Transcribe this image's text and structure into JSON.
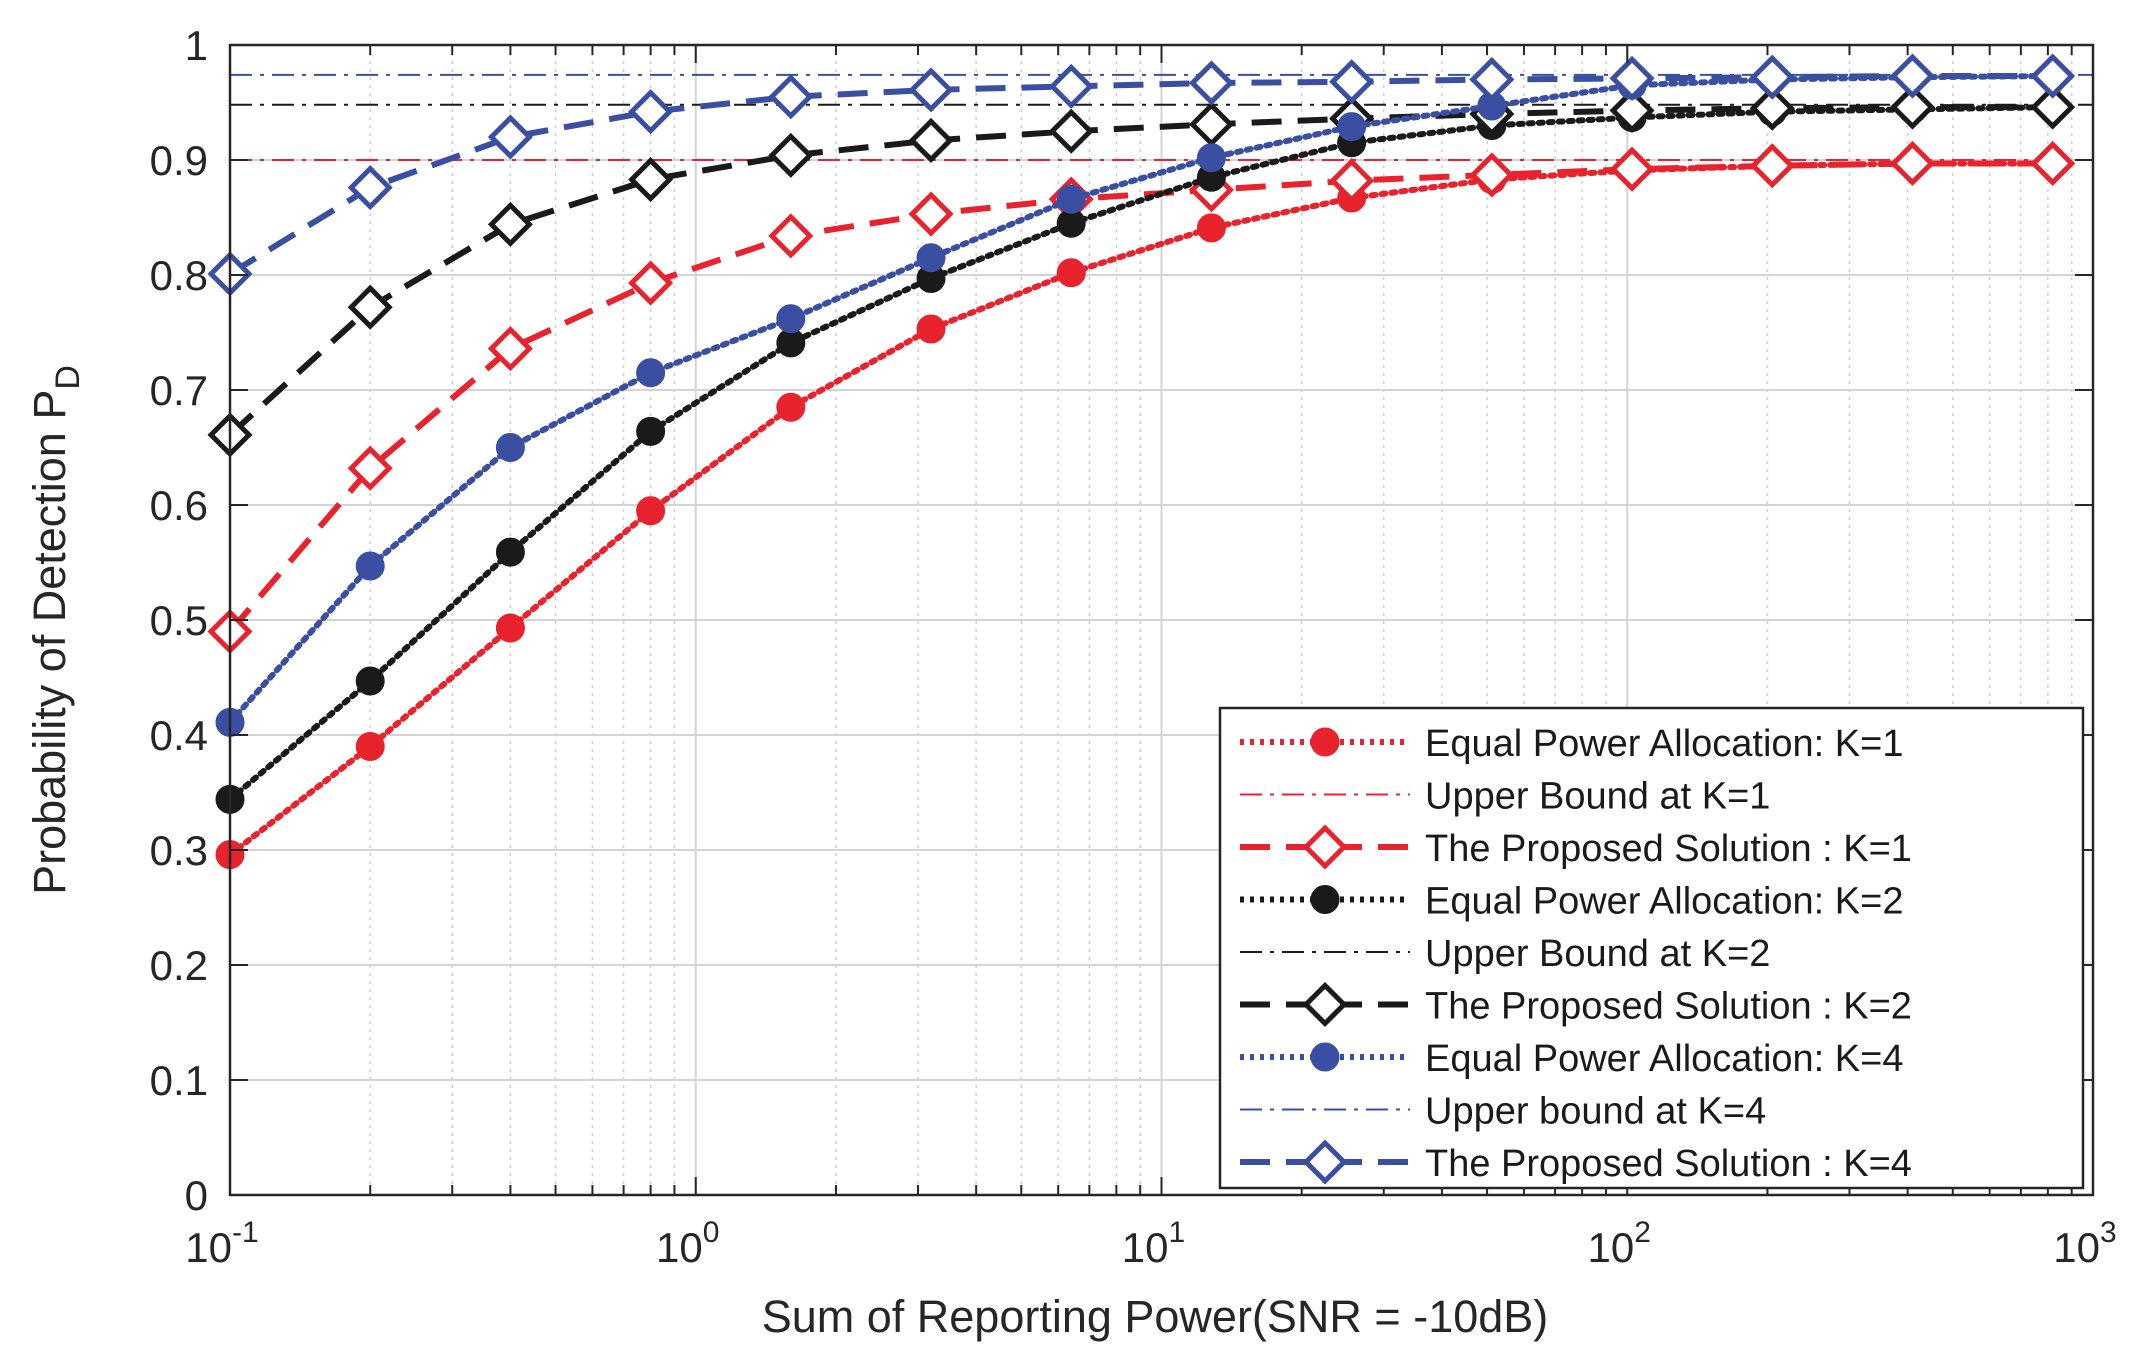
{
  "chart_data": {
    "type": "line",
    "xscale": "log",
    "xlim": [
      0.1,
      1000
    ],
    "ylim": [
      0,
      1
    ],
    "xlabel": "Sum of Reporting Power(SNR = -10dB)",
    "ylabel": "Probability of Detection P",
    "ylabel_sub": "D",
    "x_ticks": [
      {
        "base": "10",
        "exp": "-1",
        "value": 0.1
      },
      {
        "base": "10",
        "exp": "0",
        "value": 1
      },
      {
        "base": "10",
        "exp": "1",
        "value": 10
      },
      {
        "base": "10",
        "exp": "2",
        "value": 100
      },
      {
        "base": "10",
        "exp": "3",
        "value": 1000
      }
    ],
    "y_ticks": [
      "0",
      "0.1",
      "0.2",
      "0.3",
      "0.4",
      "0.5",
      "0.6",
      "0.7",
      "0.8",
      "0.9",
      "1"
    ],
    "x": [
      0.1,
      0.2,
      0.4,
      0.8,
      1.6,
      3.2,
      6.4,
      12.8,
      25.6,
      51.2,
      102.4,
      204.8,
      409.6,
      819.2
    ],
    "series": [
      {
        "name": "Equal Power Allocation: K=1",
        "color": "#e8232d",
        "style": "dotted",
        "marker": "circle",
        "values": [
          0.296,
          0.39,
          0.493,
          0.595,
          0.685,
          0.753,
          0.802,
          0.841,
          0.867,
          0.883,
          0.891,
          0.895,
          0.897,
          0.897
        ]
      },
      {
        "name": "Upper Bound at K=1",
        "color": "#e8232d",
        "style": "dashdot",
        "marker": "none",
        "hline": 0.9
      },
      {
        "name": "The Proposed Solution : K=1",
        "color": "#e8232d",
        "style": "dashed",
        "marker": "diamond",
        "values": [
          0.49,
          0.632,
          0.736,
          0.793,
          0.834,
          0.853,
          0.866,
          0.874,
          0.882,
          0.887,
          0.892,
          0.895,
          0.897,
          0.897
        ]
      },
      {
        "name": "Equal Power Allocation: K=2",
        "color": "#1a1a1a",
        "style": "dotted",
        "marker": "circle",
        "values": [
          0.344,
          0.447,
          0.559,
          0.664,
          0.741,
          0.797,
          0.845,
          0.885,
          0.915,
          0.93,
          0.937,
          0.942,
          0.944,
          0.946
        ]
      },
      {
        "name": "Upper Bound at K=2",
        "color": "#1a1a1a",
        "style": "dashdot",
        "marker": "none",
        "hline": 0.948
      },
      {
        "name": "The Proposed Solution : K=2",
        "color": "#1a1a1a",
        "style": "dashed",
        "marker": "diamond",
        "values": [
          0.661,
          0.772,
          0.844,
          0.883,
          0.904,
          0.917,
          0.925,
          0.931,
          0.936,
          0.94,
          0.943,
          0.945,
          0.946,
          0.946
        ]
      },
      {
        "name": "Equal Power Allocation: K=4",
        "color": "#3a4fa2",
        "style": "dotted",
        "marker": "circle",
        "values": [
          0.411,
          0.547,
          0.65,
          0.715,
          0.762,
          0.815,
          0.866,
          0.902,
          0.929,
          0.947,
          0.965,
          0.97,
          0.972,
          0.973
        ]
      },
      {
        "name": "Upper bound at K=4",
        "color": "#3a4fa2",
        "style": "dashdot",
        "marker": "none",
        "hline": 0.974
      },
      {
        "name": "The Proposed Solution : K=4",
        "color": "#3a4fa2",
        "style": "dashed",
        "marker": "diamond",
        "values": [
          0.801,
          0.876,
          0.92,
          0.942,
          0.955,
          0.961,
          0.964,
          0.967,
          0.968,
          0.97,
          0.971,
          0.972,
          0.973,
          0.973
        ]
      }
    ],
    "legend_position": "bottom-right",
    "grid": true
  }
}
